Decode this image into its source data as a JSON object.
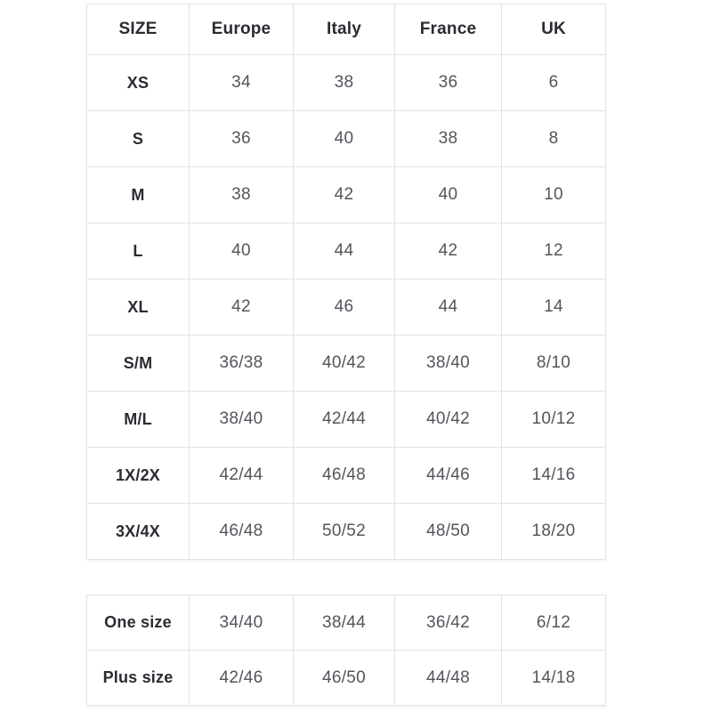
{
  "colors": {
    "background": "#ffffff",
    "border": "#e2e2e2",
    "heading_text": "#2b2b33",
    "value_text": "#54545c"
  },
  "chart_data": {
    "type": "table",
    "columns": [
      "SIZE",
      "Europe",
      "Italy",
      "France",
      "UK"
    ],
    "rows": [
      {
        "label": "XS",
        "values": [
          "34",
          "38",
          "36",
          "6"
        ]
      },
      {
        "label": "S",
        "values": [
          "36",
          "40",
          "38",
          "8"
        ]
      },
      {
        "label": "M",
        "values": [
          "38",
          "42",
          "40",
          "10"
        ]
      },
      {
        "label": "L",
        "values": [
          "40",
          "44",
          "42",
          "12"
        ]
      },
      {
        "label": "XL",
        "values": [
          "42",
          "46",
          "44",
          "14"
        ]
      },
      {
        "label": "S/M",
        "values": [
          "36/38",
          "40/42",
          "38/40",
          "8/10"
        ]
      },
      {
        "label": "M/L",
        "values": [
          "38/40",
          "42/44",
          "40/42",
          "10/12"
        ]
      },
      {
        "label": "1X/2X",
        "values": [
          "42/44",
          "46/48",
          "44/46",
          "14/16"
        ]
      },
      {
        "label": "3X/4X",
        "values": [
          "46/48",
          "50/52",
          "48/50",
          "18/20"
        ]
      }
    ],
    "secondary_rows": [
      {
        "label": "One size",
        "values": [
          "34/40",
          "38/44",
          "36/42",
          "6/12"
        ]
      },
      {
        "label": "Plus size",
        "values": [
          "42/46",
          "46/50",
          "44/48",
          "14/18"
        ]
      }
    ],
    "layout": {
      "grid": "full-borders",
      "header_row_on_first_table": true,
      "header_row_on_second_table": false,
      "legend_position": "none"
    }
  }
}
